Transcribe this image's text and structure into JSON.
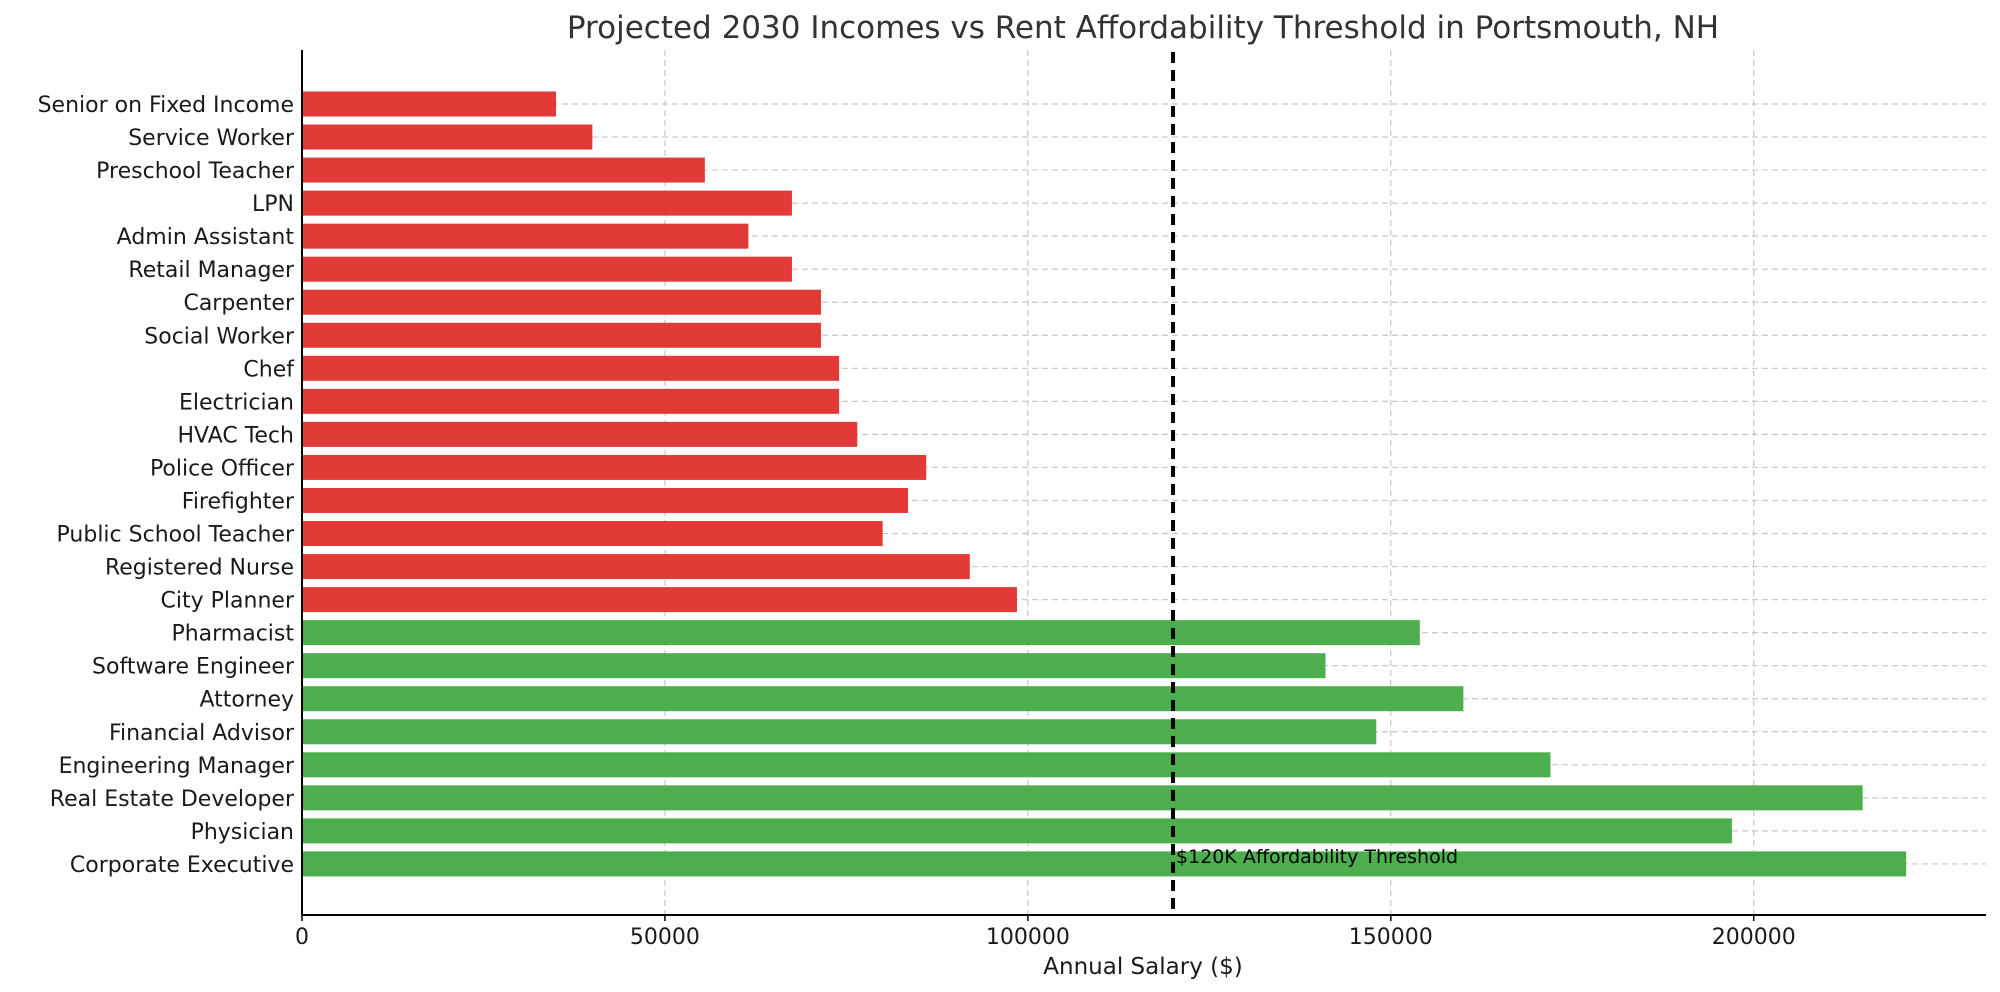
{
  "chart_data": {
    "type": "bar",
    "orientation": "horizontal",
    "title": "Projected 2030 Incomes vs Rent Affordability Threshold in Portsmouth, NH",
    "xlabel": "Annual Salary ($)",
    "ylabel": "",
    "xlim": [
      0,
      232000
    ],
    "xticks": [
      0,
      50000,
      100000,
      150000,
      200000
    ],
    "grid": true,
    "categories": [
      "Senior on Fixed Income",
      "Service Worker",
      "Preschool Teacher",
      "LPN",
      "Admin Assistant",
      "Retail Manager",
      "Carpenter",
      "Social Worker",
      "Chef",
      "Electrician",
      "HVAC Tech",
      "Police Officer",
      "Firefighter",
      "Public School Teacher",
      "Registered Nurse",
      "City Planner",
      "Pharmacist",
      "Software Engineer",
      "Attorney",
      "Financial Advisor",
      "Engineering Manager",
      "Real Estate Developer",
      "Physician",
      "Corporate Executive"
    ],
    "values": [
      35000,
      40000,
      55500,
      67500,
      61500,
      67500,
      71500,
      71500,
      74000,
      74000,
      76500,
      86000,
      83500,
      80000,
      92000,
      98500,
      154000,
      141000,
      160000,
      148000,
      172000,
      215000,
      197000,
      221000
    ],
    "threshold": {
      "value": 120000,
      "label": "$120K Affordability Threshold",
      "color": "#000000"
    },
    "colors": {
      "below_threshold": "#e23b37",
      "above_threshold": "#4cae4c",
      "grid": "#c8c8c8",
      "axis": "#000000"
    }
  }
}
